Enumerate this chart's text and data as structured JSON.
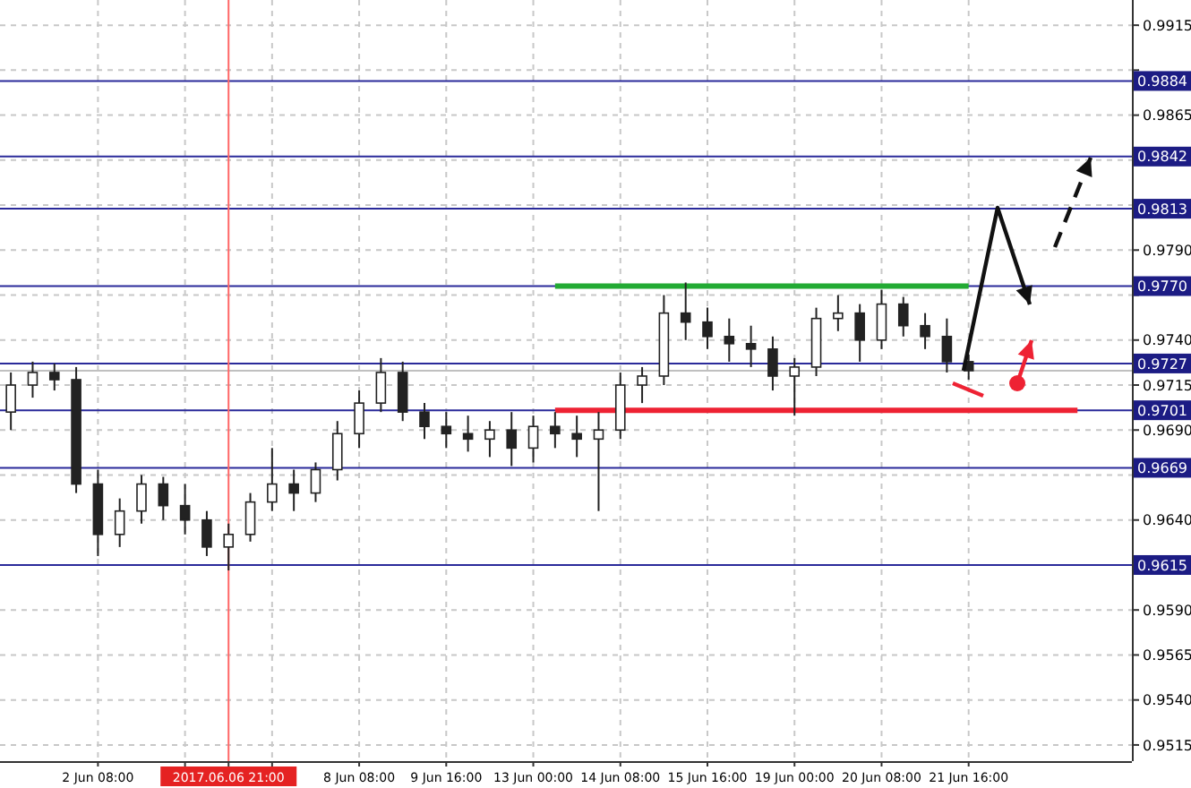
{
  "chart_data": {
    "type": "candlestick",
    "categories": [
      null,
      null,
      null,
      null,
      "2 Jun 08:00",
      null,
      null,
      null,
      null,
      null,
      "2017.06.06 21:00",
      null,
      null,
      null,
      null,
      null,
      "8 Jun 08:00",
      null,
      null,
      null,
      "9 Jun 16:00",
      null,
      null,
      null,
      "13 Jun 00:00",
      null,
      null,
      null,
      "14 Jun 08:00",
      null,
      null,
      null,
      "15 Jun 16:00",
      null,
      null,
      null,
      "19 Jun 00:00",
      null,
      null,
      null,
      "20 Jun 08:00",
      null,
      null,
      null,
      "21 Jun 16:00",
      null,
      null,
      null,
      null,
      null,
      null,
      null
    ],
    "ohlc": [
      [
        0.97,
        0.9722,
        0.969,
        0.9715
      ],
      [
        0.9715,
        0.9728,
        0.9708,
        0.9722
      ],
      [
        0.9722,
        0.9727,
        0.9712,
        0.9718
      ],
      [
        0.9718,
        0.9725,
        0.9655,
        0.966
      ],
      [
        0.966,
        0.9668,
        0.962,
        0.9632
      ],
      [
        0.9632,
        0.9652,
        0.9625,
        0.9645
      ],
      [
        0.9645,
        0.9665,
        0.9638,
        0.966
      ],
      [
        0.966,
        0.9664,
        0.964,
        0.9648
      ],
      [
        0.9648,
        0.966,
        0.9632,
        0.964
      ],
      [
        0.964,
        0.9645,
        0.962,
        0.9625
      ],
      [
        0.9625,
        0.9638,
        0.9612,
        0.9632
      ],
      [
        0.9632,
        0.9655,
        0.9628,
        0.965
      ],
      [
        0.965,
        0.968,
        0.9645,
        0.966
      ],
      [
        0.966,
        0.9668,
        0.9645,
        0.9655
      ],
      [
        0.9655,
        0.9672,
        0.965,
        0.9668
      ],
      [
        0.9668,
        0.9695,
        0.9662,
        0.9688
      ],
      [
        0.9688,
        0.9712,
        0.968,
        0.9705
      ],
      [
        0.9705,
        0.973,
        0.97,
        0.9722
      ],
      [
        0.9722,
        0.9728,
        0.9695,
        0.97
      ],
      [
        0.97,
        0.9705,
        0.9685,
        0.9692
      ],
      [
        0.9692,
        0.97,
        0.968,
        0.9688
      ],
      [
        0.9688,
        0.9698,
        0.9678,
        0.9685
      ],
      [
        0.9685,
        0.9695,
        0.9675,
        0.969
      ],
      [
        0.969,
        0.97,
        0.967,
        0.968
      ],
      [
        0.968,
        0.9698,
        0.9672,
        0.9692
      ],
      [
        0.9692,
        0.97,
        0.968,
        0.9688
      ],
      [
        0.9688,
        0.9698,
        0.9675,
        0.9685
      ],
      [
        0.9685,
        0.97,
        0.9645,
        0.969
      ],
      [
        0.969,
        0.9722,
        0.9685,
        0.9715
      ],
      [
        0.9715,
        0.9725,
        0.9705,
        0.972
      ],
      [
        0.972,
        0.9765,
        0.9715,
        0.9755
      ],
      [
        0.9755,
        0.9772,
        0.974,
        0.975
      ],
      [
        0.975,
        0.9758,
        0.9735,
        0.9742
      ],
      [
        0.9742,
        0.9752,
        0.9728,
        0.9738
      ],
      [
        0.9738,
        0.9748,
        0.9725,
        0.9735
      ],
      [
        0.9735,
        0.9742,
        0.9712,
        0.972
      ],
      [
        0.972,
        0.973,
        0.9698,
        0.9725
      ],
      [
        0.9725,
        0.9758,
        0.972,
        0.9752
      ],
      [
        0.9752,
        0.9765,
        0.9745,
        0.9755
      ],
      [
        0.9755,
        0.976,
        0.9728,
        0.974
      ],
      [
        0.974,
        0.9768,
        0.9735,
        0.976
      ],
      [
        0.976,
        0.9764,
        0.9742,
        0.9748
      ],
      [
        0.9748,
        0.9755,
        0.9735,
        0.9742
      ],
      [
        0.9742,
        0.9752,
        0.9722,
        0.9728
      ],
      [
        0.9728,
        0.9732,
        0.9718,
        0.9723
      ],
      null,
      null,
      null,
      null,
      null,
      null,
      null
    ],
    "series": [
      {
        "type": "line",
        "color": "#22aa33",
        "values": [
          null,
          null,
          null,
          null,
          null,
          null,
          null,
          null,
          null,
          null,
          null,
          null,
          null,
          null,
          null,
          null,
          null,
          null,
          null,
          null,
          null,
          null,
          null,
          null,
          null,
          0.977,
          0.977,
          0.977,
          0.977,
          0.977,
          0.977,
          0.977,
          0.977,
          0.977,
          0.977,
          0.977,
          0.977,
          0.977,
          0.977,
          0.977,
          0.977,
          0.977,
          0.977,
          0.977,
          0.977,
          null,
          null,
          null,
          null,
          null,
          null,
          null
        ]
      },
      {
        "type": "line",
        "color": "#ee2233",
        "values": [
          null,
          null,
          null,
          null,
          null,
          null,
          null,
          null,
          null,
          null,
          null,
          null,
          null,
          null,
          null,
          null,
          null,
          null,
          null,
          null,
          null,
          null,
          null,
          null,
          null,
          0.9701,
          0.9701,
          0.9701,
          0.9701,
          0.9701,
          0.9701,
          0.9701,
          0.9701,
          0.9701,
          0.9701,
          0.9701,
          0.9701,
          0.9701,
          0.9701,
          0.9701,
          0.9701,
          0.9701,
          0.9701,
          0.9701,
          0.9701,
          0.9701,
          0.9701,
          0.9701,
          0.9701,
          0.9701,
          null,
          null
        ]
      }
    ],
    "ylim": [
      0.9506,
      0.9929
    ],
    "yticks": [
      {
        "value": 0.9915,
        "label": "0.9915"
      },
      {
        "value": 0.989,
        "label": null
      },
      {
        "value": 0.9865,
        "label": "0.9865"
      },
      {
        "value": 0.984,
        "label": null
      },
      {
        "value": 0.9815,
        "label": null
      },
      {
        "value": 0.979,
        "label": "0.9790"
      },
      {
        "value": 0.9765,
        "label": null
      },
      {
        "value": 0.974,
        "label": "0.9740"
      },
      {
        "value": 0.9715,
        "label": "0.9715"
      },
      {
        "value": 0.969,
        "label": "0.9690"
      },
      {
        "value": 0.9665,
        "label": null
      },
      {
        "value": 0.964,
        "label": "0.9640"
      },
      {
        "value": 0.9615,
        "label": null
      },
      {
        "value": 0.959,
        "label": "0.9590"
      },
      {
        "value": 0.9565,
        "label": "0.9565"
      },
      {
        "value": 0.954,
        "label": "0.9540"
      },
      {
        "value": 0.9515,
        "label": "0.9515"
      }
    ],
    "grid": true,
    "ref_lines": [
      {
        "axis": "y",
        "value": 0.9884,
        "label": "0.9884",
        "color": "#2a2a9a"
      },
      {
        "axis": "y",
        "value": 0.9842,
        "label": "0.9842",
        "color": "#2a2a9a"
      },
      {
        "axis": "y",
        "value": 0.9813,
        "label": "0.9813",
        "color": "#2a2a9a"
      },
      {
        "axis": "y",
        "value": 0.977,
        "label": "0.9770",
        "color": "#2a2a9a"
      },
      {
        "axis": "y",
        "value": 0.9723,
        "label": null,
        "color": "#c0c0c0"
      },
      {
        "axis": "y",
        "value": 0.9727,
        "label": "0.9727",
        "color": "#2a2a9a"
      },
      {
        "axis": "y",
        "value": 0.9701,
        "label": "0.9701",
        "color": "#2a2a9a"
      },
      {
        "axis": "y",
        "value": 0.9669,
        "label": "0.9669",
        "color": "#2a2a9a"
      },
      {
        "axis": "y",
        "value": 0.9615,
        "label": "0.9615",
        "color": "#2a2a9a"
      },
      {
        "axis": "x",
        "value": "2017.06.06 21:00",
        "label": null,
        "color": "#ff6666"
      }
    ]
  }
}
